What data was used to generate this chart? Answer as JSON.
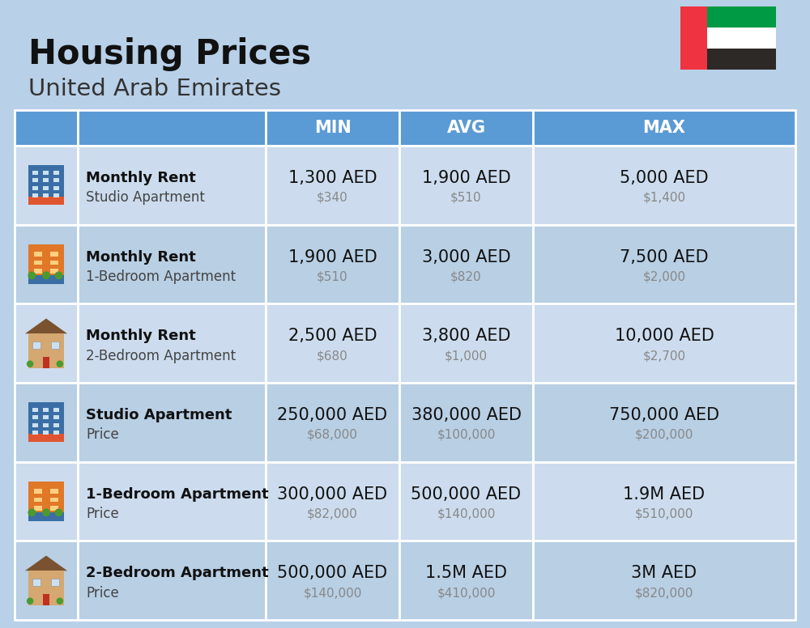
{
  "title": "Housing Prices",
  "subtitle": "United Arab Emirates",
  "bg_color": "#b8d0e8",
  "header_color": "#5b9bd5",
  "header_text_color": "#ffffff",
  "row_color_light": "#ccdcee",
  "row_color_dark": "#b8cfe4",
  "col_headers": [
    "MIN",
    "AVG",
    "MAX"
  ],
  "rows": [
    {
      "bold_label": "Monthly Rent",
      "sub_label": "Studio Apartment",
      "icon_type": "studio_blue",
      "min_aed": "1,300 AED",
      "min_usd": "$340",
      "avg_aed": "1,900 AED",
      "avg_usd": "$510",
      "max_aed": "5,000 AED",
      "max_usd": "$1,400"
    },
    {
      "bold_label": "Monthly Rent",
      "sub_label": "1-Bedroom Apartment",
      "icon_type": "one_bed_orange",
      "min_aed": "1,900 AED",
      "min_usd": "$510",
      "avg_aed": "3,000 AED",
      "avg_usd": "$820",
      "max_aed": "7,500 AED",
      "max_usd": "$2,000"
    },
    {
      "bold_label": "Monthly Rent",
      "sub_label": "2-Bedroom Apartment",
      "icon_type": "two_bed_tan",
      "min_aed": "2,500 AED",
      "min_usd": "$680",
      "avg_aed": "3,800 AED",
      "avg_usd": "$1,000",
      "max_aed": "10,000 AED",
      "max_usd": "$2,700"
    },
    {
      "bold_label": "Studio Apartment",
      "sub_label": "Price",
      "icon_type": "studio_blue",
      "min_aed": "250,000 AED",
      "min_usd": "$68,000",
      "avg_aed": "380,000 AED",
      "avg_usd": "$100,000",
      "max_aed": "750,000 AED",
      "max_usd": "$200,000"
    },
    {
      "bold_label": "1-Bedroom Apartment",
      "sub_label": "Price",
      "icon_type": "one_bed_orange",
      "min_aed": "300,000 AED",
      "min_usd": "$82,000",
      "avg_aed": "500,000 AED",
      "avg_usd": "$140,000",
      "max_aed": "1.9M AED",
      "max_usd": "$510,000"
    },
    {
      "bold_label": "2-Bedroom Apartment",
      "sub_label": "Price",
      "icon_type": "two_bed_tan",
      "min_aed": "500,000 AED",
      "min_usd": "$140,000",
      "avg_aed": "1.5M AED",
      "avg_usd": "$410,000",
      "max_aed": "3M AED",
      "max_usd": "$820,000"
    }
  ],
  "aed_fontsize": 15,
  "usd_fontsize": 11,
  "label_bold_fontsize": 13,
  "label_sub_fontsize": 12,
  "header_fontsize": 15
}
